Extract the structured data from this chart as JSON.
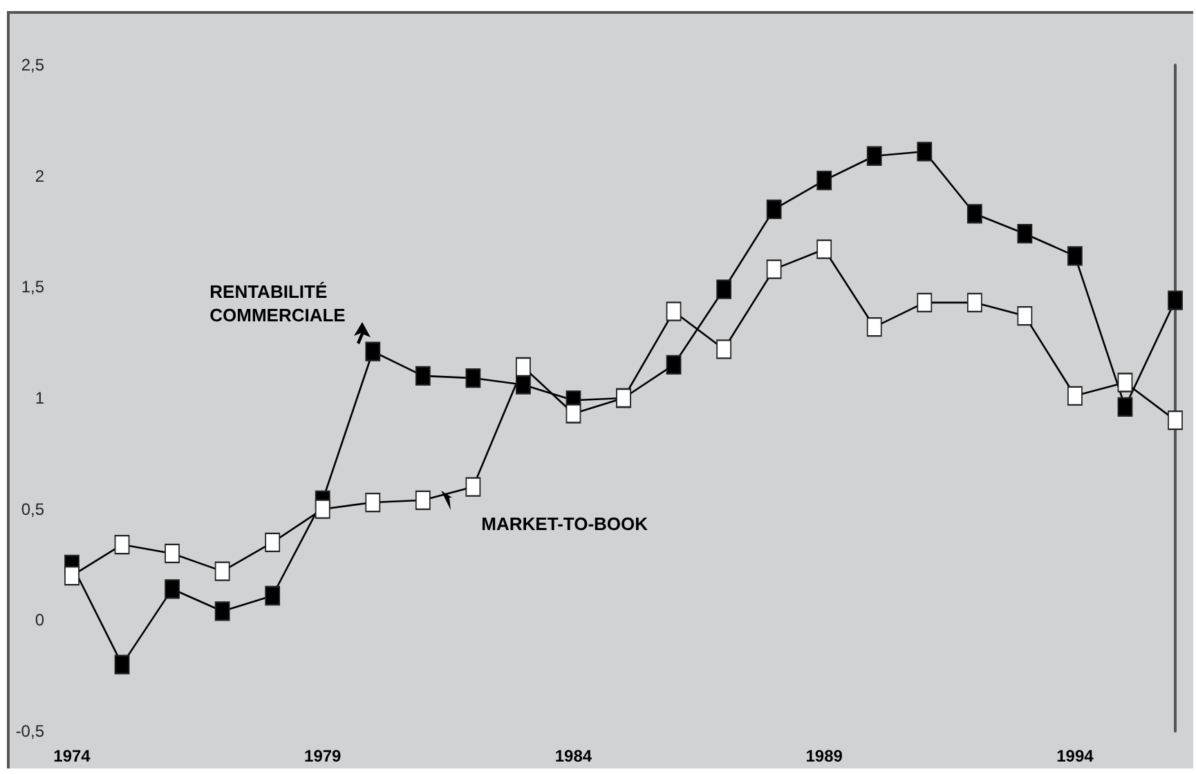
{
  "chart_data": {
    "type": "line",
    "x": [
      1974,
      1975,
      1976,
      1977,
      1978,
      1979,
      1980,
      1981,
      1982,
      1983,
      1984,
      1985,
      1986,
      1987,
      1988,
      1989,
      1990,
      1991,
      1992,
      1993,
      1994,
      1995,
      1996
    ],
    "series": [
      {
        "name": "RENTABILITÉ COMMERCIALE",
        "color": "#000000",
        "values": [
          0.25,
          -0.2,
          0.14,
          0.04,
          0.11,
          0.54,
          1.21,
          1.1,
          1.09,
          1.06,
          0.99,
          1.0,
          1.15,
          1.49,
          1.85,
          1.98,
          2.09,
          2.11,
          1.83,
          1.74,
          1.64,
          0.96,
          1.44
        ]
      },
      {
        "name": "MARKET-TO-BOOK",
        "color": "#ffffff",
        "values": [
          0.2,
          0.34,
          0.3,
          0.22,
          0.35,
          0.5,
          0.53,
          0.54,
          0.6,
          1.14,
          0.93,
          1.0,
          1.39,
          1.22,
          1.58,
          1.67,
          1.32,
          1.43,
          1.43,
          1.37,
          1.01,
          1.07,
          0.9
        ]
      }
    ],
    "xlim": [
      1974,
      1996
    ],
    "xticks": [
      1974,
      1979,
      1984,
      1989,
      1994
    ],
    "ylim": [
      -0.5,
      2.5
    ],
    "yticks": [
      {
        "value": -0.5,
        "label": "-0,5"
      },
      0,
      {
        "value": 0.5,
        "label": "0,5"
      },
      1,
      {
        "value": 1.5,
        "label": "1,5"
      },
      2,
      {
        "value": 2.5,
        "label": "2,5"
      }
    ],
    "grid": false,
    "legend": false,
    "marker": "square",
    "line_style": "solid"
  }
}
